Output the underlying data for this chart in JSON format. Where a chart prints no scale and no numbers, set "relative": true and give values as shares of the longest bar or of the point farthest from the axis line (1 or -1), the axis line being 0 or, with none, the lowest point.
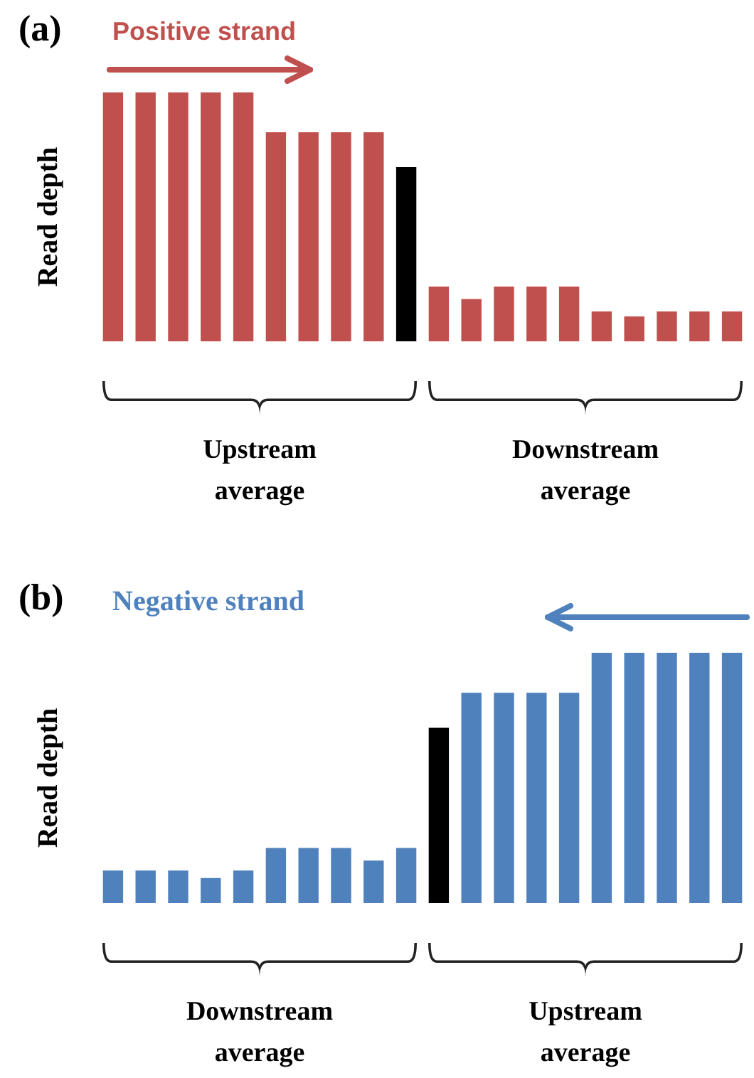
{
  "chart_data": [
    {
      "type": "bar",
      "title": "(a)",
      "subtitle": "Positive strand",
      "ylabel": "Read depth",
      "relative": true,
      "categories": [
        null,
        null,
        null,
        null,
        null,
        null,
        null,
        null,
        null,
        null,
        null,
        null,
        null,
        null,
        null,
        null,
        null,
        null,
        null,
        null
      ],
      "values": [
        1,
        1,
        1,
        1,
        1,
        0.84,
        0.84,
        0.84,
        0.84,
        0.7,
        0.22,
        0.17,
        0.22,
        0.22,
        0.22,
        0.12,
        0.1,
        0.12,
        0.12,
        0.12
      ],
      "colors": [
        "#c0504d",
        "#c0504d",
        "#c0504d",
        "#c0504d",
        "#c0504d",
        "#c0504d",
        "#c0504d",
        "#c0504d",
        "#c0504d",
        "#000000",
        "#c0504d",
        "#c0504d",
        "#c0504d",
        "#c0504d",
        "#c0504d",
        "#c0504d",
        "#c0504d",
        "#c0504d",
        "#c0504d",
        "#c0504d"
      ],
      "annotations": [
        "Upstream\naverage",
        "Downstream\naverage"
      ]
    },
    {
      "type": "bar",
      "title": "(b)",
      "subtitle": "Negative strand",
      "ylabel": "Read depth",
      "relative": true,
      "categories": [
        null,
        null,
        null,
        null,
        null,
        null,
        null,
        null,
        null,
        null,
        null,
        null,
        null,
        null,
        null,
        null,
        null,
        null,
        null,
        null
      ],
      "values": [
        0.13,
        0.13,
        0.13,
        0.1,
        0.13,
        0.22,
        0.22,
        0.22,
        0.17,
        0.22,
        0.7,
        0.84,
        0.84,
        0.84,
        0.84,
        1,
        1,
        1,
        1,
        1
      ],
      "colors": [
        "#4f81bd",
        "#4f81bd",
        "#4f81bd",
        "#4f81bd",
        "#4f81bd",
        "#4f81bd",
        "#4f81bd",
        "#4f81bd",
        "#4f81bd",
        "#4f81bd",
        "#000000",
        "#4f81bd",
        "#4f81bd",
        "#4f81bd",
        "#4f81bd",
        "#4f81bd",
        "#4f81bd",
        "#4f81bd",
        "#4f81bd",
        "#4f81bd"
      ],
      "annotations": [
        "Downstream\naverage",
        "Upstream\naverage"
      ]
    }
  ]
}
